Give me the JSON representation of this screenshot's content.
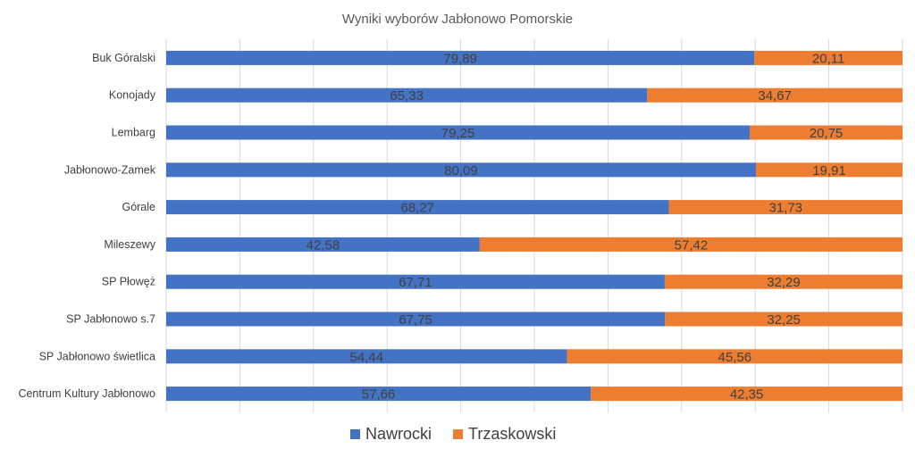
{
  "chart_data": {
    "type": "bar",
    "orientation": "horizontal",
    "stacked": true,
    "title": "Wyniki wyborów Jabłonowo Pomorskie",
    "xlabel": "",
    "ylabel": "",
    "xlim": [
      0,
      100
    ],
    "grid": true,
    "legend_position": "bottom",
    "categories": [
      "Buk Góralski",
      "Konojady",
      "Lembarg",
      "Jabłonowo-Zamek",
      "Górale",
      "Mileszewy",
      "SP Płowęż",
      "SP Jabłonowo s.7",
      "SP Jabłonowo świetlica",
      "Centrum Kultury Jabłonowo"
    ],
    "series": [
      {
        "name": "Nawrocki",
        "color": "#4472C4",
        "values": [
          79.89,
          65.33,
          79.25,
          80.09,
          68.27,
          42.58,
          67.71,
          67.75,
          54.44,
          57.66
        ],
        "labels": [
          "79,89",
          "65,33",
          "79,25",
          "80,09",
          "68,27",
          "42,58",
          "67,71",
          "67,75",
          "54,44",
          "57,66"
        ]
      },
      {
        "name": "Trzaskowski",
        "color": "#ED7D31",
        "values": [
          20.11,
          34.67,
          20.75,
          19.91,
          31.73,
          57.42,
          32.29,
          32.25,
          45.56,
          42.35
        ],
        "labels": [
          "20,11",
          "34,67",
          "20,75",
          "19,91",
          "31,73",
          "57,42",
          "32,29",
          "32,25",
          "45,56",
          "42,35"
        ]
      }
    ]
  }
}
